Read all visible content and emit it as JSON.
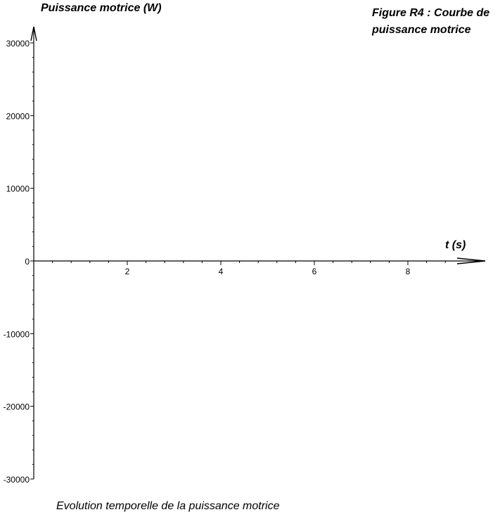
{
  "chart_data": {
    "type": "line",
    "title": "Figure R4 : Courbe de puissance motrice",
    "title_lines": [
      "Figure R4 : Courbe de",
      "puissance motrice"
    ],
    "xlabel": "t (s)",
    "ylabel": "Puissance motrice (W)",
    "caption": "Evolution temporelle de la puissance motrice",
    "xlim": [
      0,
      9.4
    ],
    "ylim": [
      -30000,
      30000
    ],
    "x_ticks": [
      2,
      4,
      6,
      8
    ],
    "x_minor_step": 0.4,
    "y_ticks": [
      -30000,
      -20000,
      -10000,
      0,
      10000,
      20000,
      30000
    ],
    "y_minor_step": 2000,
    "grid": false,
    "series": []
  }
}
